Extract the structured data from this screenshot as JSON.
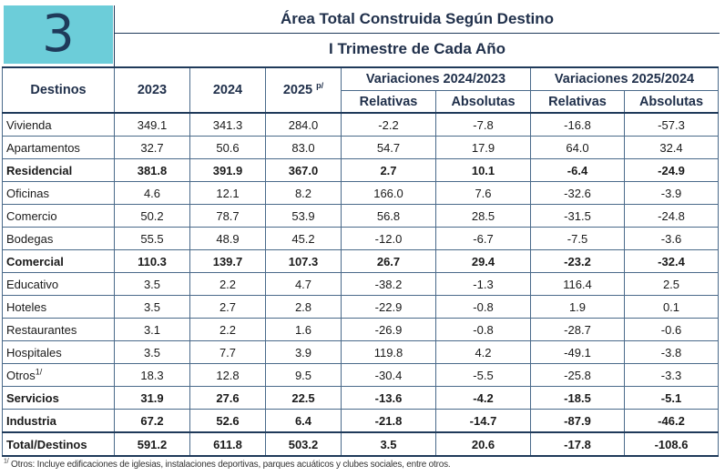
{
  "badge": {
    "number": "3"
  },
  "header": {
    "title": "Área Total Construida Según Destino",
    "subtitle": "I Trimestre de Cada Año"
  },
  "columns": {
    "destinos": "Destinos",
    "y2023": "2023",
    "y2024": "2024",
    "y2025": "2025",
    "y2025_note": "p/",
    "var1": "Variaciones 2024/2023",
    "var2": "Variaciones 2025/2024",
    "relativas": "Relativas",
    "absolutas": "Absolutas"
  },
  "rows": [
    {
      "label": "Vivienda",
      "note": "",
      "bold": false,
      "values": [
        "349.1",
        "341.3",
        "284.0",
        "-2.2",
        "-7.8",
        "-16.8",
        "-57.3"
      ]
    },
    {
      "label": "Apartamentos",
      "note": "",
      "bold": false,
      "values": [
        "32.7",
        "50.6",
        "83.0",
        "54.7",
        "17.9",
        "64.0",
        "32.4"
      ]
    },
    {
      "label": "Residencial",
      "note": "",
      "bold": true,
      "values": [
        "381.8",
        "391.9",
        "367.0",
        "2.7",
        "10.1",
        "-6.4",
        "-24.9"
      ]
    },
    {
      "label": "Oficinas",
      "note": "",
      "bold": false,
      "values": [
        "4.6",
        "12.1",
        "8.2",
        "166.0",
        "7.6",
        "-32.6",
        "-3.9"
      ]
    },
    {
      "label": "Comercio",
      "note": "",
      "bold": false,
      "values": [
        "50.2",
        "78.7",
        "53.9",
        "56.8",
        "28.5",
        "-31.5",
        "-24.8"
      ]
    },
    {
      "label": "Bodegas",
      "note": "",
      "bold": false,
      "values": [
        "55.5",
        "48.9",
        "45.2",
        "-12.0",
        "-6.7",
        "-7.5",
        "-3.6"
      ]
    },
    {
      "label": "Comercial",
      "note": "",
      "bold": true,
      "values": [
        "110.3",
        "139.7",
        "107.3",
        "26.7",
        "29.4",
        "-23.2",
        "-32.4"
      ]
    },
    {
      "label": "Educativo",
      "note": "",
      "bold": false,
      "values": [
        "3.5",
        "2.2",
        "4.7",
        "-38.2",
        "-1.3",
        "116.4",
        "2.5"
      ]
    },
    {
      "label": "Hoteles",
      "note": "",
      "bold": false,
      "values": [
        "3.5",
        "2.7",
        "2.8",
        "-22.9",
        "-0.8",
        "1.9",
        "0.1"
      ]
    },
    {
      "label": "Restaurantes",
      "note": "",
      "bold": false,
      "values": [
        "3.1",
        "2.2",
        "1.6",
        "-26.9",
        "-0.8",
        "-28.7",
        "-0.6"
      ]
    },
    {
      "label": "Hospitales",
      "note": "",
      "bold": false,
      "values": [
        "3.5",
        "7.7",
        "3.9",
        "119.8",
        "4.2",
        "-49.1",
        "-3.8"
      ]
    },
    {
      "label": "Otros",
      "note": "1/",
      "bold": false,
      "values": [
        "18.3",
        "12.8",
        "9.5",
        "-30.4",
        "-5.5",
        "-25.8",
        "-3.3"
      ]
    },
    {
      "label": "Servicios",
      "note": "",
      "bold": true,
      "values": [
        "31.9",
        "27.6",
        "22.5",
        "-13.6",
        "-4.2",
        "-18.5",
        "-5.1"
      ]
    },
    {
      "label": "Industria",
      "note": "",
      "bold": true,
      "values": [
        "67.2",
        "52.6",
        "6.4",
        "-21.8",
        "-14.7",
        "-87.9",
        "-46.2"
      ]
    },
    {
      "label": "Total/Destinos",
      "note": "",
      "bold": true,
      "total": true,
      "values": [
        "591.2",
        "611.8",
        "503.2",
        "3.5",
        "20.6",
        "-17.8",
        "-108.6"
      ]
    }
  ],
  "footnote": {
    "mark": "1/",
    "text": "Otros: Incluye edificaciones de iglesias, instalaciones deportivas, parques acuáticos y clubes sociales, entre otros."
  },
  "colors": {
    "badge_bg": "#6ccdd9",
    "title_text": "#1f2f4a",
    "border": "#1f3a5a"
  }
}
